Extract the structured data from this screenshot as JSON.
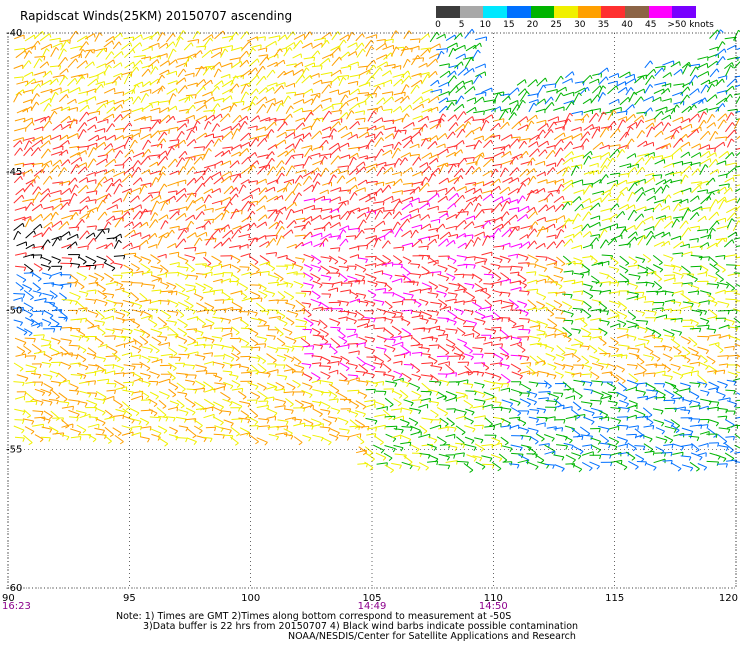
{
  "title": "Rapidscat Winds(25KM) 20150707 ascending",
  "legend": {
    "labels": [
      "0",
      "5",
      "10",
      "15",
      "20",
      "25",
      "30",
      "35",
      "40",
      "45",
      ">50 knots"
    ],
    "colors": [
      "#3c3c3c",
      "#a8a8a8",
      "#00e8ff",
      "#0070ff",
      "#00b400",
      "#f0f000",
      "#ffa000",
      "#ff3030",
      "#8c6446",
      "#ff00ff",
      "#7800ff"
    ]
  },
  "map": {
    "lon_ticks": [
      "90",
      "95",
      "100",
      "105",
      "110",
      "115",
      "120"
    ],
    "lat_ticks": [
      "-40",
      "-45",
      "-50",
      "-55",
      "-60"
    ],
    "lon_range": [
      90,
      120
    ],
    "lat_range": [
      -60,
      -40
    ],
    "time_labels": [
      {
        "lon": 90,
        "text": "16:23"
      },
      {
        "lon": 105,
        "text": "14:49"
      },
      {
        "lon": 110,
        "text": "14:50"
      }
    ],
    "time_color": "#8c008c"
  },
  "notes": {
    "line1": "Note: 1) Times are GMT 2)Times along bottom correspond to measurement at -50S",
    "line2": "3)Data buffer is 22 hrs from 20150707 4) Black wind barbs indicate possible contamination",
    "line3": "NOAA/NESDIS/Center for Satellite Applications and Research"
  }
}
